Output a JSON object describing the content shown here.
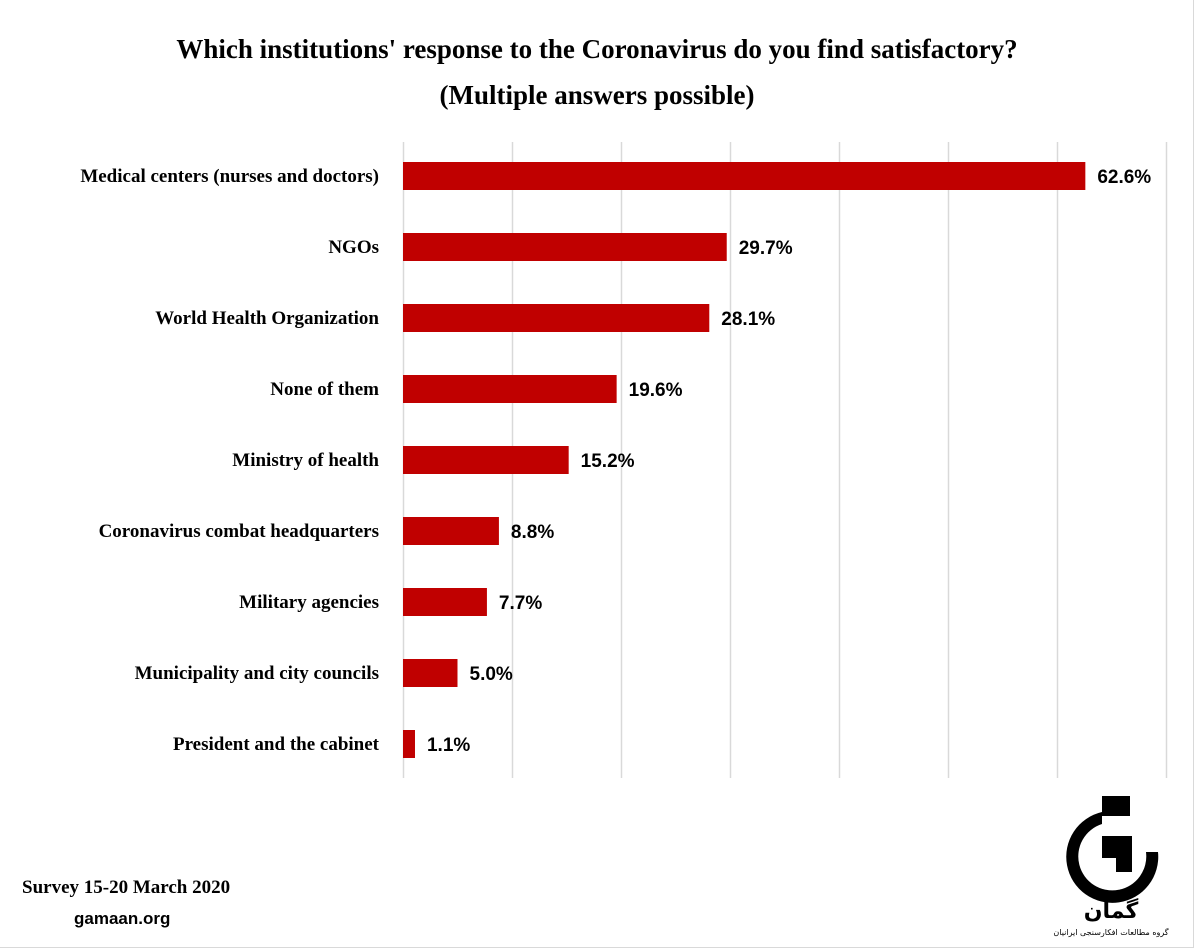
{
  "header": {
    "title": "Which institutions' response to the Coronavirus do you find satisfactory?",
    "subtitle": "(Multiple answers possible)"
  },
  "footer": {
    "survey": "Survey 15-20 March 2020",
    "site": "gamaan.org"
  },
  "logo": {
    "icon": "gamaan-logo",
    "wordmark": "گمان",
    "tagline": "گروه مطالعات افکارسنجی ایرانیان"
  },
  "colors": {
    "bar": "#c00000",
    "grid": "#d9d9d9"
  },
  "chart_data": {
    "type": "bar",
    "orientation": "horizontal",
    "title": "Which institutions' response to the Coronavirus do you find satisfactory?",
    "subtitle": "(Multiple answers possible)",
    "categories": [
      "Medical centers (nurses and doctors)",
      "NGOs",
      "World Health Organization",
      "None of them",
      "Ministry of health",
      "Coronavirus combat headquarters",
      "Military agencies",
      "Municipality and city councils",
      "President and the cabinet"
    ],
    "values": [
      62.6,
      29.7,
      28.1,
      19.6,
      15.2,
      8.8,
      7.7,
      5.0,
      1.1
    ],
    "data_labels": [
      "62.6%",
      "29.7%",
      "28.1%",
      "19.6%",
      "15.2%",
      "8.8%",
      "7.7%",
      "5.0%",
      "1.1%"
    ],
    "xlim": [
      0,
      70
    ],
    "grid_step": 10,
    "grid": true,
    "legend": "none"
  }
}
